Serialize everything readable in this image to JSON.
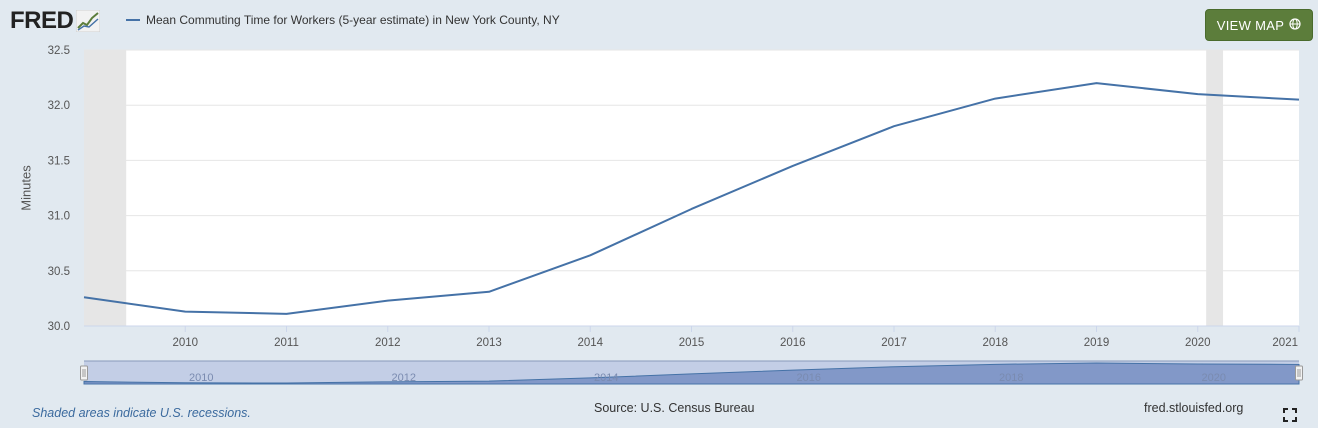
{
  "header": {
    "logo_text": "FRED",
    "view_map_label": "VIEW MAP"
  },
  "colors": {
    "page_bg": "#e1e9f0",
    "plot_bg": "#ffffff",
    "series": "#4572a7",
    "recession": "#e6e6e6",
    "button": "#5c7d3b",
    "navigator_bg": "#c3cee6",
    "navigator_fill": "#8298c8"
  },
  "icons": {
    "logo": "line-chart-icon",
    "view_map": "globe-icon",
    "fullscreen": "fullscreen-icon"
  },
  "footer": {
    "recession_note": "Shaded areas indicate U.S. recessions.",
    "source": "Source: U.S. Census Bureau",
    "url": "fred.stlouisfed.org"
  },
  "chart_data": {
    "type": "line",
    "title": "",
    "xlabel": "",
    "ylabel": "Minutes",
    "ylim": [
      30.0,
      32.5
    ],
    "xlim": [
      2009,
      2021
    ],
    "grid": "horizontal",
    "legend_position": "top-left",
    "x_ticks": [
      "2010",
      "2011",
      "2012",
      "2013",
      "2014",
      "2015",
      "2016",
      "2017",
      "2018",
      "2019",
      "2020",
      "2021"
    ],
    "y_ticks": [
      "30.0",
      "30.5",
      "31.0",
      "31.5",
      "32.0",
      "32.5"
    ],
    "series": [
      {
        "name": "Mean Commuting Time for Workers (5-year estimate) in New York County, NY",
        "x": [
          2009,
          2010,
          2011,
          2012,
          2013,
          2014,
          2015,
          2016,
          2017,
          2018,
          2019,
          2020,
          2021
        ],
        "values": [
          30.26,
          30.13,
          30.11,
          30.23,
          30.31,
          30.64,
          31.06,
          31.45,
          31.81,
          32.06,
          32.2,
          32.1,
          32.05
        ]
      }
    ],
    "recessions": [
      {
        "start": "2007-12",
        "end": "2009-06"
      },
      {
        "start": "2020-02",
        "end": "2020-04"
      }
    ],
    "navigator": {
      "x_ticks": [
        "2010",
        "2012",
        "2014",
        "2016",
        "2018",
        "2020"
      ]
    }
  }
}
